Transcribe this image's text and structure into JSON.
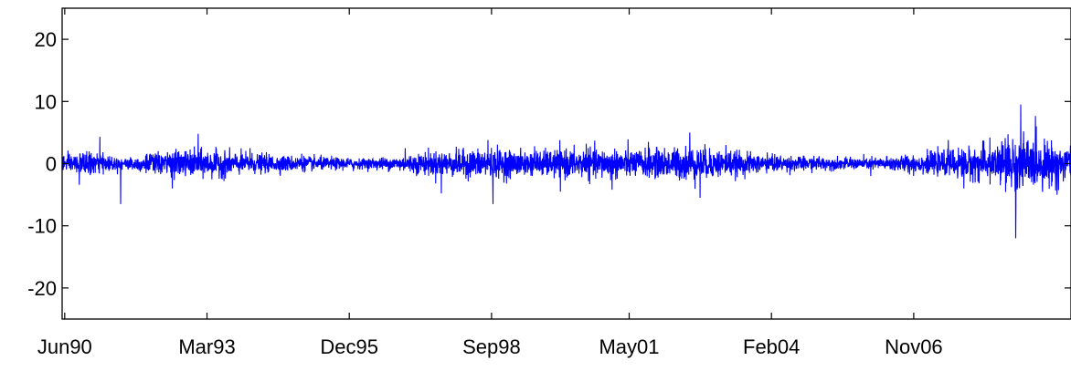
{
  "chart_data": {
    "type": "line",
    "title": "",
    "xlabel": "",
    "ylabel": "",
    "x_tick_labels": [
      "Jun90",
      "Mar93",
      "Dec95",
      "Sep98",
      "May01",
      "Feb04",
      "Nov06"
    ],
    "y_tick_labels": [
      "20",
      "10",
      "0",
      "-10",
      "-20"
    ],
    "y_ticks": [
      20,
      10,
      0,
      -10,
      -20
    ],
    "ylim": [
      -25,
      25
    ],
    "x_tick_positions_years": [
      1990.42,
      1993.17,
      1995.92,
      1998.67,
      2001.33,
      2004.08,
      2006.83
    ],
    "xlim_years": [
      1990.37,
      2009.87
    ],
    "series": [
      {
        "color": "#0000ff",
        "description_points": [
          {
            "x": 1990.4,
            "y": 1.2
          },
          {
            "x": 1990.7,
            "y": -3.4
          },
          {
            "x": 1991.1,
            "y": 4.3
          },
          {
            "x": 1991.5,
            "y": -6.5
          },
          {
            "x": 1992.0,
            "y": 1.5
          },
          {
            "x": 1992.5,
            "y": -4.0
          },
          {
            "x": 1993.0,
            "y": 4.8
          },
          {
            "x": 1993.5,
            "y": -2.8
          },
          {
            "x": 1994.0,
            "y": 2.5
          },
          {
            "x": 1995.0,
            "y": 1.6
          },
          {
            "x": 1996.0,
            "y": -1.2
          },
          {
            "x": 1997.0,
            "y": 2.5
          },
          {
            "x": 1997.7,
            "y": -4.8
          },
          {
            "x": 1998.6,
            "y": 3.8
          },
          {
            "x": 1998.7,
            "y": -6.5
          },
          {
            "x": 1999.5,
            "y": 2.8
          },
          {
            "x": 2000.0,
            "y": -4.5
          },
          {
            "x": 2000.5,
            "y": 3.2
          },
          {
            "x": 2001.0,
            "y": -4.2
          },
          {
            "x": 2001.7,
            "y": 3.5
          },
          {
            "x": 2002.5,
            "y": 5.0
          },
          {
            "x": 2002.7,
            "y": -5.5
          },
          {
            "x": 2003.2,
            "y": 3.0
          },
          {
            "x": 2004.0,
            "y": 1.8
          },
          {
            "x": 2005.0,
            "y": 1.2
          },
          {
            "x": 2006.0,
            "y": -2.0
          },
          {
            "x": 2007.5,
            "y": 3.8
          },
          {
            "x": 2007.8,
            "y": -4.0
          },
          {
            "x": 2008.3,
            "y": 4.2
          },
          {
            "x": 2008.9,
            "y": 9.5
          },
          {
            "x": 2008.8,
            "y": -12.0
          },
          {
            "x": 2009.2,
            "y": 6.0
          },
          {
            "x": 2009.6,
            "y": -5.0
          }
        ]
      }
    ],
    "grid": false,
    "legend": "none"
  }
}
